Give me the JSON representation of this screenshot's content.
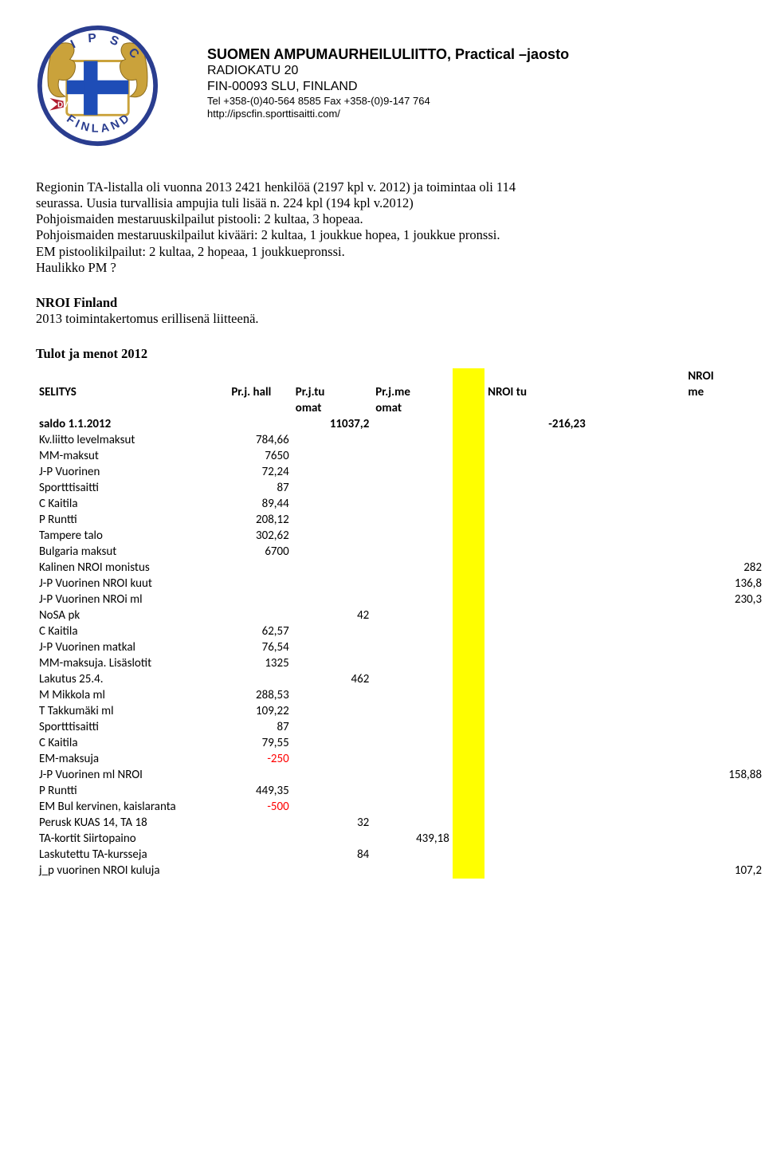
{
  "org": {
    "title": "SUOMEN AMPUMAURHEILULIITTO, Practical –jaosto",
    "line1": "RADIOKATU 20",
    "line2": "FIN-00093 SLU, FINLAND",
    "tel": "Tel +358-(0)40-564 8585 Fax +358-(0)9-147 764",
    "url": "http://ipscfin.sporttisaitti.com/"
  },
  "paras": {
    "p1a": "Regionin TA-listalla oli vuonna 2013 2421 henkilöä (2197 kpl v. 2012) ja toimintaa oli 114",
    "p1b": "seurassa. Uusia turvallisia ampujia tuli lisää n. 224 kpl (194 kpl v.2012)",
    "p2a": "Pohjoismaiden mestaruuskilpailut pistooli: 2 kultaa, 3 hopeaa.",
    "p2b": "Pohjoismaiden mestaruuskilpailut kivääri: 2 kultaa, 1 joukkue hopea, 1 joukkue pronssi.",
    "p2c": "EM pistoolikilpailut: 2 kultaa, 2 hopeaa, 1 joukkuepronssi.",
    "p2d": "Haulikko PM ?",
    "nroi_h": "NROI Finland",
    "nroi_t": "2013 toimintakertomus erillisenä liitteenä.",
    "tulot_h": "Tulot ja menot 2012"
  },
  "hdr": {
    "selitys": "SELITYS",
    "hall": "Pr.j. hall",
    "tu1": "Pr.j.tu",
    "tu2": "omat",
    "me1": "Pr.j.me",
    "me2": "omat",
    "nroi_tu": "NROI tu",
    "nroi_me1": "NROI",
    "nroi_me2": "me"
  },
  "saldo": {
    "label": "saldo 1.1.2012",
    "tu": "11037,2",
    "ntu": "-216,23"
  },
  "rows": [
    {
      "d": "Kv.liitto levelmaksut",
      "hall": "784,66"
    },
    {
      "d": "MM-maksut",
      "hall": "7650"
    },
    {
      "d": "J-P Vuorinen",
      "hall": "72,24"
    },
    {
      "d": "Sportttisaitti",
      "hall": "87"
    },
    {
      "d": "C Kaitila",
      "hall": "89,44"
    },
    {
      "d": "P Runtti",
      "hall": "208,12"
    },
    {
      "d": "Tampere talo",
      "hall": "302,62"
    },
    {
      "d": "Bulgaria maksut",
      "hall": "6700"
    },
    {
      "d": "Kalinen NROI monistus",
      "nme": "282"
    },
    {
      "d": "J-P  Vuorinen NROI kuut",
      "nme": "136,8"
    },
    {
      "d": "J-P Vuorinen NROi ml",
      "nme": "230,3"
    },
    {
      "d": "NoSA pk",
      "tu": "42"
    },
    {
      "d": "C Kaitila",
      "hall": "62,57"
    },
    {
      "d": "J-P Vuorinen matkal",
      "hall": "76,54"
    },
    {
      "d": "MM-maksuja. Lisäslotit",
      "hall": "1325"
    },
    {
      "d": "Lakutus 25.4.",
      "tu": "462"
    },
    {
      "d": "M Mikkola ml",
      "hall": "288,53"
    },
    {
      "d": "T Takkumäki ml",
      "hall": "109,22"
    },
    {
      "d": "Sportttisaitti",
      "hall": "87"
    },
    {
      "d": "C Kaitila",
      "hall": "79,55"
    },
    {
      "d": "EM-maksuja",
      "hall": "-250",
      "neg": true
    },
    {
      "d": "J-P Vuorinen ml NROI",
      "nme": "158,88"
    },
    {
      "d": "P Runtti",
      "hall": "449,35"
    },
    {
      "d": "EM Bul kervinen, kaislaranta",
      "hall": "-500",
      "neg": true
    },
    {
      "d": "Perusk KUAS 14, TA 18",
      "tu": "32"
    },
    {
      "d": "TA-kortit Siirtopaino",
      "me": "439,18"
    },
    {
      "d": "Laskutettu TA-kursseja",
      "tu": "84"
    },
    {
      "d": "j_p vuorinen NROI kuluja",
      "nme": "107,2"
    }
  ],
  "logo": {
    "outer_border": "#2a3d8f",
    "gold_lion": "#caa23b",
    "blue_field": "#1e4db7",
    "white": "#ffffff",
    "red": "#b01c2e",
    "top_text": "I P S C",
    "bottom_text": "FINLAND",
    "dvc": "DVC"
  }
}
